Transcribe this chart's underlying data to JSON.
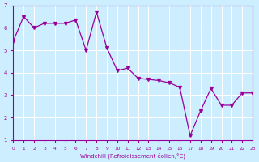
{
  "xlabel": "Windchill (Refroidissement éolien,°C)",
  "ylabel": "",
  "line_color": "#990099",
  "bg_color": "#cceeff",
  "grid_color": "#ffffff",
  "xlim": [
    0,
    23
  ],
  "ylim": [
    1,
    7
  ],
  "xticks": [
    0,
    1,
    2,
    3,
    4,
    5,
    6,
    7,
    8,
    9,
    10,
    11,
    12,
    13,
    14,
    15,
    16,
    17,
    18,
    19,
    20,
    21,
    22,
    23
  ],
  "yticks": [
    1,
    2,
    3,
    4,
    5,
    6,
    7
  ],
  "x": [
    0,
    1,
    2,
    3,
    4,
    5,
    6,
    7,
    8,
    9,
    10,
    11,
    12,
    13,
    14,
    15,
    16,
    17,
    18,
    19,
    20,
    21,
    22,
    23
  ],
  "y": [
    5.4,
    6.5,
    6.0,
    6.2,
    6.2,
    6.2,
    6.35,
    5.0,
    6.7,
    5.1,
    4.1,
    4.2,
    3.75,
    3.7,
    3.65,
    3.55,
    3.35,
    1.2,
    2.3,
    3.3,
    2.55,
    2.55,
    3.1,
    3.1
  ]
}
